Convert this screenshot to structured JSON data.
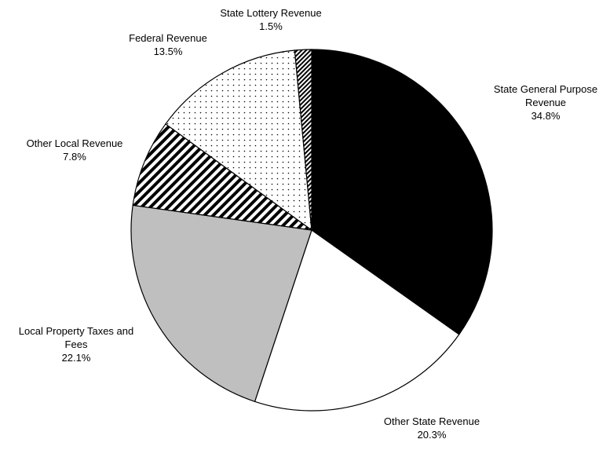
{
  "chart_data": {
    "type": "pie",
    "categories": [
      "State General Purpose Revenue",
      "Other State Revenue",
      "Local Property Taxes and Fees",
      "Other Local Revenue",
      "Federal Revenue",
      "State Lottery Revenue"
    ],
    "values": [
      34.8,
      20.3,
      22.1,
      7.8,
      13.5,
      1.5
    ],
    "value_labels": [
      "34.8%",
      "20.3%",
      "22.1%",
      "7.8%",
      "13.5%",
      "1.5%"
    ],
    "colors": [
      "#000000",
      "#ffffff",
      "#bfbfbf",
      "#000000",
      "#000000",
      "#000000"
    ],
    "patterns": [
      "solid",
      "solid",
      "solid",
      "diagonal",
      "dots",
      "fine-diagonal"
    ]
  }
}
